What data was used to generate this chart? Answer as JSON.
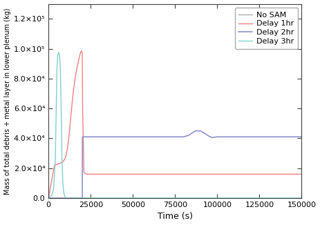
{
  "title": "",
  "xlabel": "Time (s)",
  "ylabel": "Mass of total debris + metal layer in lower plenum (kg)",
  "xlim": [
    0,
    150000
  ],
  "ylim": [
    0,
    130000
  ],
  "ytick_vals": [
    0,
    20000,
    40000,
    60000,
    80000,
    100000,
    120000
  ],
  "xtick_vals": [
    0,
    25000,
    50000,
    75000,
    100000,
    125000,
    150000
  ],
  "legend_entries": [
    "No SAM",
    "Delay 1hr",
    "Delay 2hr",
    "Delay 3hr"
  ],
  "colors": {
    "no_sam": "#b0b0b0",
    "delay1": "#f08080",
    "delay2": "#9090d0",
    "delay3": "#80d0d0"
  },
  "linewidths": {
    "no_sam": 1.0,
    "delay1": 1.0,
    "delay2": 1.2,
    "delay3": 1.0
  },
  "no_sam": {
    "x": [
      0,
      150000
    ],
    "y": [
      0,
      0
    ]
  },
  "delay1": {
    "x": [
      0,
      3500,
      4000,
      5000,
      6000,
      7000,
      8000,
      9000,
      10000,
      11000,
      12000,
      13000,
      14000,
      15000,
      16000,
      17000,
      18000,
      19000,
      19500,
      20000,
      20200,
      21000,
      22000,
      22300,
      23000,
      24000,
      150000
    ],
    "y": [
      0,
      22000,
      22200,
      22500,
      23000,
      23500,
      24000,
      25000,
      27000,
      32000,
      40000,
      52000,
      64000,
      74000,
      82000,
      88000,
      93000,
      97500,
      98500,
      97000,
      60000,
      17000,
      16500,
      16000,
      16000,
      16000,
      16000
    ]
  },
  "delay2": {
    "x": [
      0,
      20000,
      20100,
      21000,
      22000,
      25000,
      30000,
      75000,
      80000,
      83000,
      85000,
      87000,
      90000,
      93000,
      95000,
      97000,
      100000,
      105000,
      150000
    ],
    "y": [
      0,
      0,
      41000,
      41000,
      41000,
      41000,
      41000,
      41000,
      41000,
      42000,
      43500,
      45000,
      45000,
      43000,
      41500,
      40500,
      41000,
      41000,
      41000
    ]
  },
  "delay3": {
    "x": [
      0,
      2000,
      3000,
      4000,
      5000,
      5500,
      6000,
      6500,
      7000,
      7500,
      8000,
      8500,
      9000,
      9500,
      10000,
      10200,
      10500,
      11000,
      150000
    ],
    "y": [
      0,
      2000,
      6000,
      25000,
      87000,
      96000,
      97500,
      96000,
      86000,
      60000,
      25000,
      10000,
      4000,
      1500,
      500,
      200,
      0,
      0,
      0
    ]
  },
  "figsize": [
    4.63,
    3.26
  ],
  "dpi": 100
}
